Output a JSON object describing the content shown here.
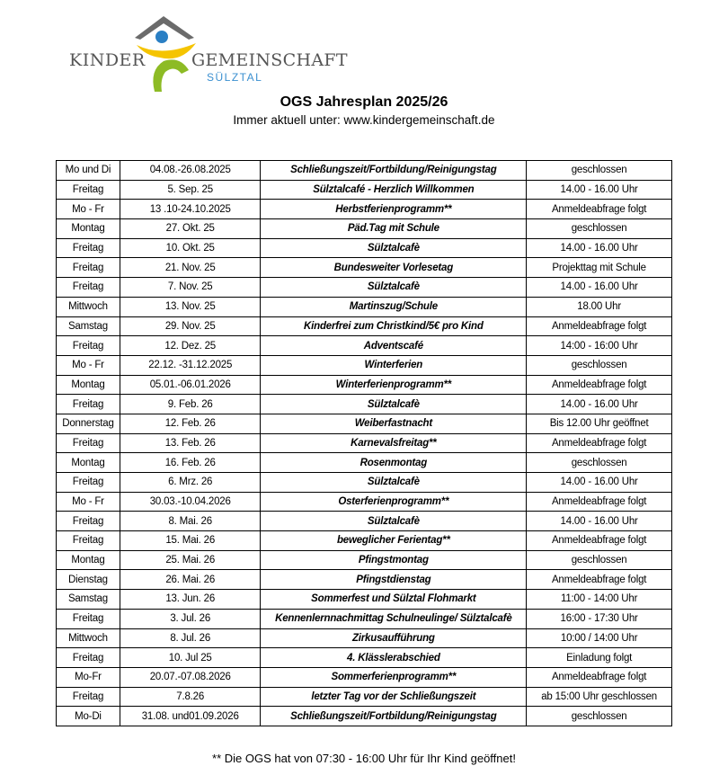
{
  "logo": {
    "left": "KINDER",
    "right": "GEMEINSCHAFT",
    "sub": "SÜLZTAL",
    "colors": {
      "roof": "#6b6b6b",
      "head": "#2a7fc4",
      "arms": "#f5c400",
      "body": "#8dbb25"
    }
  },
  "header": {
    "title": "OGS Jahresplan 2025/26",
    "subtitle": "Immer aktuell unter: www.kindergemeinschaft.de"
  },
  "rows": [
    [
      "Mo und Di",
      "04.08.-26.08.2025",
      "Schließungszeit/Fortbildung/Reinigungstag",
      "geschlossen"
    ],
    [
      "Freitag",
      "5. Sep. 25",
      "Sülztalcafé - Herzlich Willkommen",
      "14.00 - 16.00 Uhr"
    ],
    [
      "Mo - Fr",
      "13 .10-24.10.2025",
      "Herbstferienprogramm**",
      "Anmeldeabfrage folgt"
    ],
    [
      "Montag",
      "27. Okt. 25",
      "Päd.Tag  mit Schule",
      "geschlossen"
    ],
    [
      "Freitag",
      "10. Okt. 25",
      "Sülztalcafè",
      "14.00 - 16.00 Uhr"
    ],
    [
      "Freitag",
      "21. Nov. 25",
      "Bundesweiter Vorlesetag",
      "Projekttag mit Schule"
    ],
    [
      "Freitag",
      "7. Nov. 25",
      "Sülztalcafè",
      "14.00 - 16.00 Uhr"
    ],
    [
      "Mittwoch",
      "13. Nov. 25",
      "Martinszug/Schule",
      "18.00 Uhr"
    ],
    [
      "Samstag",
      "29. Nov. 25",
      "Kinderfrei zum Christkind/5€ pro Kind",
      "Anmeldeabfrage folgt"
    ],
    [
      "Freitag",
      "12. Dez. 25",
      "Adventscafé",
      "14:00 - 16:00 Uhr"
    ],
    [
      "Mo - Fr",
      "22.12. -31.12.2025",
      "Winterferien",
      "geschlossen"
    ],
    [
      "Montag",
      "05.01.-06.01.2026",
      "Winterferienprogramm**",
      "Anmeldeabfrage folgt"
    ],
    [
      "Freitag",
      "9. Feb. 26",
      "Sülztalcafè",
      "14.00 - 16.00 Uhr"
    ],
    [
      "Donnerstag",
      "12. Feb. 26",
      "Weiberfastnacht",
      "Bis 12.00 Uhr geöffnet"
    ],
    [
      "Freitag",
      "13. Feb. 26",
      "Karnevalsfreitag**",
      "Anmeldeabfrage folgt"
    ],
    [
      "Montag",
      "16. Feb. 26",
      "Rosenmontag",
      "geschlossen"
    ],
    [
      "Freitag",
      "6. Mrz. 26",
      "Sülztalcafè",
      "14.00 - 16.00 Uhr"
    ],
    [
      "Mo - Fr",
      "30.03.-10.04.2026",
      "Osterferienprogramm**",
      "Anmeldeabfrage folgt"
    ],
    [
      "Freitag",
      "8. Mai. 26",
      "Sülztalcafè",
      "14.00 - 16.00 Uhr"
    ],
    [
      "Freitag",
      "15. Mai. 26",
      "beweglicher Ferientag**",
      "Anmeldeabfrage folgt"
    ],
    [
      "Montag",
      "25. Mai. 26",
      "Pfingstmontag",
      "geschlossen"
    ],
    [
      "Dienstag",
      "26. Mai. 26",
      "Pfingstdienstag",
      "Anmeldeabfrage folgt"
    ],
    [
      "Samstag",
      "13. Jun. 26",
      "Sommerfest und Sülztal Flohmarkt",
      "11:00 - 14:00 Uhr"
    ],
    [
      "Freitag",
      "3. Jul. 26",
      "Kennenlernnachmittag Schulneulinge/ Sülztalcafè",
      "16:00 - 17:30 Uhr"
    ],
    [
      "Mittwoch",
      "8. Jul. 26",
      "Zirkusaufführung",
      "10:00 / 14:00 Uhr"
    ],
    [
      "Freitag",
      "10. Jul 25",
      "4. Klässlerabschied",
      "Einladung folgt"
    ],
    [
      "Mo-Fr",
      "20.07.-07.08.2026",
      "Sommerferienprogramm**",
      "Anmeldeabfrage folgt"
    ],
    [
      "Freitag",
      "7.8.26",
      "letzter Tag vor der Schließungszeit",
      "ab 15:00 Uhr geschlossen"
    ],
    [
      "Mo-Di",
      "31.08. und01.09.2026",
      "Schließungszeit/Fortbildung/Reinigungstag",
      "geschlossen"
    ]
  ],
  "footer": "** Die OGS hat von 07:30 - 16:00 Uhr für Ihr Kind geöffnet!"
}
